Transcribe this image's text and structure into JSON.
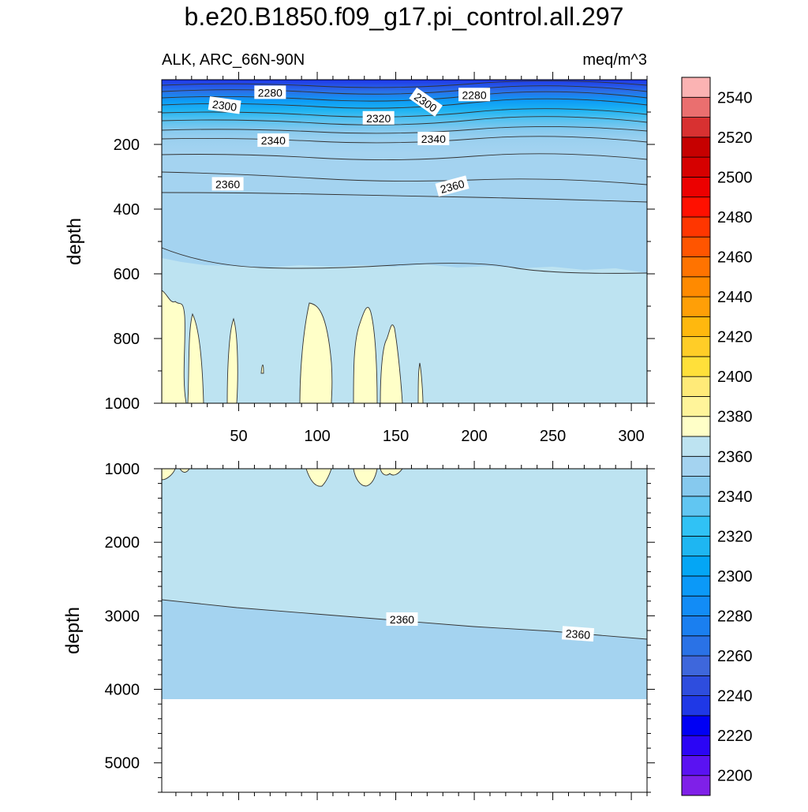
{
  "title": "b.e20.B1850.f09_g17.pi_control.all.297",
  "chart_data": [
    {
      "type": "contour",
      "panel": "top",
      "left_subtitle": "ALK, ARC_66N-90N",
      "right_subtitle": "meq/m^3",
      "ylabel": "depth",
      "xlim": [
        1,
        310
      ],
      "ylim": [
        0,
        1000
      ],
      "y_inverted": true,
      "xticks": [
        50,
        100,
        150,
        200,
        250,
        300
      ],
      "xtick_labels": [
        "50",
        "100",
        "150",
        "200",
        "250",
        "300"
      ],
      "yticks": [
        200,
        400,
        600,
        800,
        1000
      ],
      "ytick_labels": [
        "200",
        "400",
        "600",
        "800",
        "1000"
      ],
      "contour_labels": [
        {
          "text": "2280",
          "x": 70,
          "y": 40,
          "angle": 0
        },
        {
          "text": "2300",
          "x": 41,
          "y": 80,
          "angle": 8
        },
        {
          "text": "2300",
          "x": 169,
          "y": 70,
          "angle": 35
        },
        {
          "text": "2280",
          "x": 200,
          "y": 47,
          "angle": 0
        },
        {
          "text": "2320",
          "x": 139,
          "y": 119,
          "angle": 0
        },
        {
          "text": "2340",
          "x": 72,
          "y": 188,
          "angle": 0
        },
        {
          "text": "2340",
          "x": 174,
          "y": 183,
          "angle": 0
        },
        {
          "text": "2360",
          "x": 43,
          "y": 323,
          "angle": 0
        },
        {
          "text": "2360",
          "x": 186,
          "y": 330,
          "angle": -15
        }
      ]
    },
    {
      "type": "contour",
      "panel": "bottom",
      "ylabel": "depth",
      "xlim": [
        1,
        310
      ],
      "ylim": [
        1000,
        5400
      ],
      "y_inverted": true,
      "yticks": [
        1000,
        2000,
        3000,
        4000,
        5000
      ],
      "ytick_labels": [
        "1000",
        "2000",
        "3000",
        "4000",
        "5000"
      ],
      "contour_labels": [
        {
          "text": "2360",
          "x": 154,
          "y": 3050,
          "angle": 0
        },
        {
          "text": "2360",
          "x": 266,
          "y": 3250,
          "angle": 4
        }
      ]
    }
  ],
  "colorbar": {
    "levels": [
      2200,
      2210,
      2220,
      2230,
      2240,
      2250,
      2260,
      2270,
      2280,
      2290,
      2300,
      2310,
      2320,
      2330,
      2340,
      2350,
      2360,
      2370,
      2380,
      2390,
      2400,
      2410,
      2420,
      2430,
      2440,
      2450,
      2460,
      2470,
      2480,
      2490,
      2500,
      2510,
      2520,
      2530,
      2540,
      2550
    ],
    "labels": [
      "2200",
      "2220",
      "2240",
      "2260",
      "2280",
      "2300",
      "2320",
      "2340",
      "2360",
      "2380",
      "2400",
      "2420",
      "2440",
      "2460",
      "2480",
      "2500",
      "2520",
      "2540"
    ],
    "colors": [
      "#7f20e8",
      "#5a12f2",
      "#2b05f5",
      "#0000f4",
      "#1f38e6",
      "#2e4dde",
      "#3e67dc",
      "#2a72e6",
      "#1a7ff0",
      "#128cf6",
      "#0b99f8",
      "#04a6f5",
      "#1eb6f2",
      "#30c2f5",
      "#61c6f2",
      "#86c9ee",
      "#a4d3f0",
      "#bde3f1",
      "#ffffc8",
      "#fff49a",
      "#ffea78",
      "#ffe03a",
      "#ffcd27",
      "#ffb80e",
      "#ff9f07",
      "#ff8a00",
      "#ff7300",
      "#ff5500",
      "#ff3600",
      "#ff1000",
      "#ec0000",
      "#d60000",
      "#c60000",
      "#d83131",
      "#ea6f6f",
      "#fbb3b3"
    ]
  }
}
